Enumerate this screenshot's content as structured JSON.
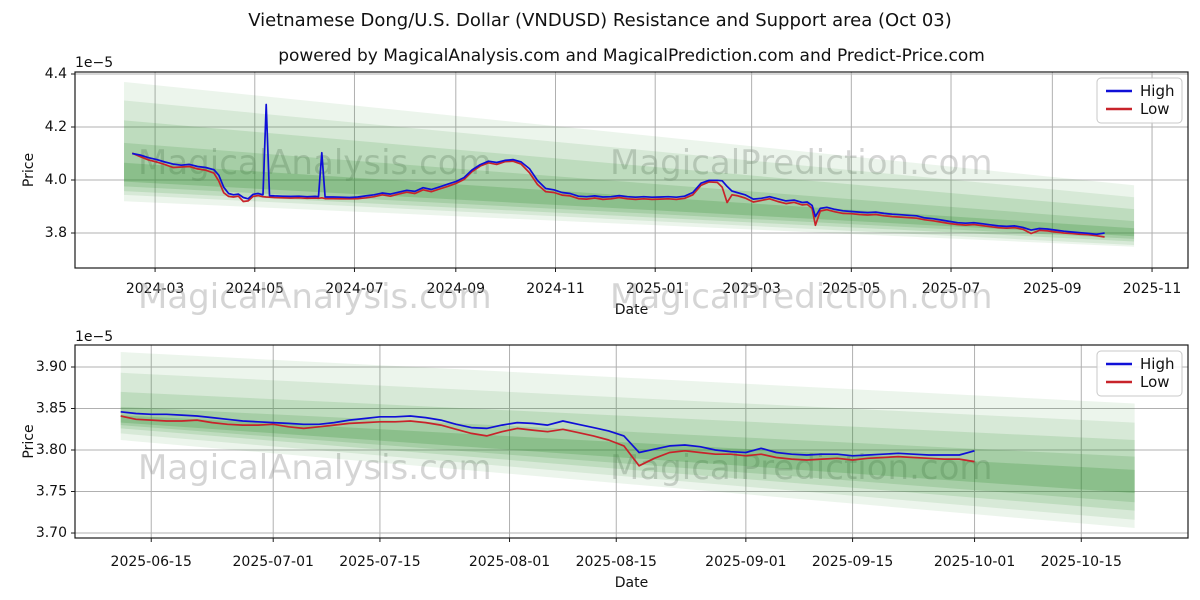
{
  "title": "Vietnamese Dong/U.S. Dollar (VNDUSD) Resistance and Support area (Oct 03)",
  "subtitle": "powered by MagicalAnalysis.com and MagicalPrediction.com and Predict-Price.com",
  "watermarks": {
    "left": "MagicalAnalysis.com",
    "right": "MagicalPrediction.com"
  },
  "legend": {
    "high_label": "High",
    "low_label": "Low"
  },
  "colors": {
    "high": "#0f0fd7",
    "low": "#c8232a",
    "band": "#2e8b2e",
    "grid": "#b0b0b0",
    "spine": "#1a1a1a",
    "watermark": "#9a9a9a",
    "text": "#111111"
  },
  "chart_data": [
    {
      "type": "line",
      "name": "long-range-chart",
      "xlabel": "Date",
      "ylabel": "Price",
      "offset_label": "1e−5",
      "x_epoch": "2024-01-12",
      "x_range": [
        0,
        681
      ],
      "ylim": [
        3.668,
        4.4075
      ],
      "grid": true,
      "legend_position": "upper right",
      "xticks": [
        [
          49,
          "2024-03"
        ],
        [
          110,
          "2024-05"
        ],
        [
          171,
          "2024-07"
        ],
        [
          233,
          "2024-09"
        ],
        [
          294,
          "2024-11"
        ],
        [
          355,
          "2025-01"
        ],
        [
          414,
          "2025-03"
        ],
        [
          475,
          "2025-05"
        ],
        [
          536,
          "2025-07"
        ],
        [
          598,
          "2025-09"
        ],
        [
          659,
          "2025-11"
        ]
      ],
      "yticks": [
        [
          4.4,
          "4.4"
        ],
        [
          4.2,
          "4.2"
        ],
        [
          4.0,
          "4.0"
        ],
        [
          3.8,
          "3.8"
        ]
      ],
      "series_names": [
        "High",
        "Low"
      ],
      "rows_format": [
        "t_days",
        "high_1e-5",
        "low_1e-5"
      ],
      "rows": [
        [
          35,
          4.1,
          4.101
        ],
        [
          40,
          4.094,
          4.088
        ],
        [
          45,
          4.084,
          4.076
        ],
        [
          50,
          4.077,
          4.068
        ],
        [
          55,
          4.068,
          4.058
        ],
        [
          60,
          4.06,
          4.047
        ],
        [
          65,
          4.056,
          4.049
        ],
        [
          70,
          4.059,
          4.051
        ],
        [
          75,
          4.051,
          4.042
        ],
        [
          80,
          4.047,
          4.037
        ],
        [
          85,
          4.039,
          4.026
        ],
        [
          88,
          4.018,
          3.996
        ],
        [
          91,
          3.973,
          3.952
        ],
        [
          94,
          3.949,
          3.938
        ],
        [
          97,
          3.944,
          3.936
        ],
        [
          100,
          3.947,
          3.939
        ],
        [
          103,
          3.934,
          3.919
        ],
        [
          106,
          3.929,
          3.921
        ],
        [
          109,
          3.946,
          3.938
        ],
        [
          112,
          3.949,
          3.941
        ],
        [
          115,
          3.944,
          3.937
        ],
        [
          117,
          4.285,
          3.936
        ],
        [
          119,
          3.941,
          3.935
        ],
        [
          122,
          3.94,
          3.934
        ],
        [
          127,
          3.939,
          3.933
        ],
        [
          132,
          3.938,
          3.932
        ],
        [
          137,
          3.939,
          3.933
        ],
        [
          142,
          3.937,
          3.931
        ],
        [
          147,
          3.938,
          3.932
        ],
        [
          149,
          3.937,
          3.931
        ],
        [
          151,
          4.103,
          3.933
        ],
        [
          153,
          3.936,
          3.93
        ],
        [
          158,
          3.936,
          3.93
        ],
        [
          163,
          3.935,
          3.929
        ],
        [
          168,
          3.934,
          3.929
        ],
        [
          173,
          3.936,
          3.93
        ],
        [
          178,
          3.94,
          3.933
        ],
        [
          183,
          3.944,
          3.937
        ],
        [
          188,
          3.951,
          3.944
        ],
        [
          193,
          3.947,
          3.939
        ],
        [
          198,
          3.954,
          3.947
        ],
        [
          203,
          3.961,
          3.954
        ],
        [
          208,
          3.957,
          3.949
        ],
        [
          213,
          3.971,
          3.963
        ],
        [
          218,
          3.964,
          3.956
        ],
        [
          223,
          3.974,
          3.966
        ],
        [
          228,
          3.984,
          3.976
        ],
        [
          233,
          3.994,
          3.987
        ],
        [
          238,
          4.009,
          4.002
        ],
        [
          243,
          4.038,
          4.032
        ],
        [
          248,
          4.058,
          4.053
        ],
        [
          253,
          4.071,
          4.065
        ],
        [
          258,
          4.066,
          4.059
        ],
        [
          263,
          4.074,
          4.069
        ],
        [
          268,
          4.077,
          4.071
        ],
        [
          273,
          4.068,
          4.06
        ],
        [
          278,
          4.043,
          4.028
        ],
        [
          283,
          3.998,
          3.983
        ],
        [
          288,
          3.968,
          3.956
        ],
        [
          293,
          3.963,
          3.953
        ],
        [
          298,
          3.953,
          3.943
        ],
        [
          303,
          3.949,
          3.94
        ],
        [
          308,
          3.939,
          3.93
        ],
        [
          313,
          3.937,
          3.928
        ],
        [
          318,
          3.94,
          3.932
        ],
        [
          323,
          3.936,
          3.927
        ],
        [
          328,
          3.937,
          3.929
        ],
        [
          333,
          3.941,
          3.934
        ],
        [
          338,
          3.937,
          3.929
        ],
        [
          343,
          3.935,
          3.927
        ],
        [
          348,
          3.937,
          3.929
        ],
        [
          353,
          3.935,
          3.927
        ],
        [
          358,
          3.936,
          3.928
        ],
        [
          363,
          3.937,
          3.929
        ],
        [
          368,
          3.935,
          3.927
        ],
        [
          373,
          3.939,
          3.931
        ],
        [
          378,
          3.953,
          3.944
        ],
        [
          383,
          3.988,
          3.98
        ],
        [
          388,
          3.999,
          3.993
        ],
        [
          393,
          3.999,
          3.991
        ],
        [
          396,
          3.997,
          3.973
        ],
        [
          399,
          3.976,
          3.915
        ],
        [
          402,
          3.958,
          3.944
        ],
        [
          405,
          3.953,
          3.941
        ],
        [
          410,
          3.944,
          3.932
        ],
        [
          415,
          3.928,
          3.917
        ],
        [
          420,
          3.931,
          3.923
        ],
        [
          425,
          3.937,
          3.929
        ],
        [
          430,
          3.929,
          3.919
        ],
        [
          435,
          3.921,
          3.911
        ],
        [
          440,
          3.924,
          3.916
        ],
        [
          445,
          3.915,
          3.906
        ],
        [
          448,
          3.917,
          3.908
        ],
        [
          451,
          3.904,
          3.893
        ],
        [
          453,
          3.862,
          3.829
        ],
        [
          456,
          3.893,
          3.883
        ],
        [
          460,
          3.897,
          3.888
        ],
        [
          465,
          3.889,
          3.88
        ],
        [
          470,
          3.884,
          3.874
        ],
        [
          475,
          3.881,
          3.873
        ],
        [
          480,
          3.879,
          3.87
        ],
        [
          485,
          3.877,
          3.868
        ],
        [
          490,
          3.879,
          3.87
        ],
        [
          495,
          3.874,
          3.865
        ],
        [
          500,
          3.871,
          3.862
        ],
        [
          505,
          3.869,
          3.86
        ],
        [
          510,
          3.867,
          3.858
        ],
        [
          515,
          3.865,
          3.856
        ],
        [
          520,
          3.857,
          3.85
        ],
        [
          525,
          3.854,
          3.846
        ],
        [
          530,
          3.849,
          3.841
        ],
        [
          535,
          3.844,
          3.836
        ],
        [
          540,
          3.839,
          3.832
        ],
        [
          545,
          3.837,
          3.83
        ],
        [
          550,
          3.839,
          3.832
        ],
        [
          555,
          3.835,
          3.828
        ],
        [
          560,
          3.831,
          3.824
        ],
        [
          565,
          3.827,
          3.82
        ],
        [
          570,
          3.825,
          3.818
        ],
        [
          575,
          3.827,
          3.82
        ],
        [
          580,
          3.821,
          3.814
        ],
        [
          585,
          3.811,
          3.798
        ],
        [
          590,
          3.817,
          3.81
        ],
        [
          595,
          3.815,
          3.808
        ],
        [
          600,
          3.811,
          3.804
        ],
        [
          605,
          3.807,
          3.8
        ],
        [
          610,
          3.804,
          3.798
        ],
        [
          615,
          3.801,
          3.795
        ],
        [
          620,
          3.799,
          3.794
        ],
        [
          625,
          3.795,
          3.79
        ],
        [
          630,
          3.8,
          3.785
        ]
      ],
      "bands_format": [
        "t0",
        "top0",
        "bot0",
        "t1",
        "top1",
        "bot1",
        "alpha"
      ],
      "bands": [
        [
          30,
          4.37,
          3.92,
          648,
          3.98,
          3.748,
          0.09
        ],
        [
          30,
          4.3,
          3.944,
          648,
          3.935,
          3.755,
          0.11
        ],
        [
          30,
          4.225,
          3.958,
          648,
          3.89,
          3.768,
          0.14
        ],
        [
          30,
          4.14,
          3.976,
          648,
          3.845,
          3.778,
          0.17
        ],
        [
          30,
          4.065,
          3.994,
          648,
          3.818,
          3.788,
          0.22
        ]
      ]
    },
    {
      "type": "line",
      "name": "recent-range-chart",
      "xlabel": "Date",
      "ylabel": "Price",
      "offset_label": "1e−5",
      "x_epoch": "2025-06-05",
      "x_range": [
        0,
        146
      ],
      "ylim": [
        3.694,
        3.9265
      ],
      "grid": true,
      "legend_position": "upper right",
      "xticks": [
        [
          10,
          "2025-06-15"
        ],
        [
          26,
          "2025-07-01"
        ],
        [
          40,
          "2025-07-15"
        ],
        [
          57,
          "2025-08-01"
        ],
        [
          71,
          "2025-08-15"
        ],
        [
          88,
          "2025-09-01"
        ],
        [
          102,
          "2025-09-15"
        ],
        [
          118,
          "2025-10-01"
        ],
        [
          132,
          "2025-10-15"
        ]
      ],
      "yticks": [
        [
          3.9,
          "3.90"
        ],
        [
          3.85,
          "3.85"
        ],
        [
          3.8,
          "3.80"
        ],
        [
          3.75,
          "3.75"
        ],
        [
          3.7,
          "3.70"
        ]
      ],
      "series_names": [
        "High",
        "Low"
      ],
      "rows_format": [
        "t_days",
        "high_1e-5",
        "low_1e-5"
      ],
      "rows": [
        [
          6,
          3.846,
          3.841
        ],
        [
          8,
          3.844,
          3.837
        ],
        [
          10,
          3.843,
          3.836
        ],
        [
          12,
          3.843,
          3.835
        ],
        [
          14,
          3.842,
          3.835
        ],
        [
          16,
          3.841,
          3.836
        ],
        [
          18,
          3.839,
          3.833
        ],
        [
          20,
          3.837,
          3.831
        ],
        [
          22,
          3.835,
          3.83
        ],
        [
          24,
          3.834,
          3.83
        ],
        [
          26,
          3.833,
          3.831
        ],
        [
          28,
          3.832,
          3.828
        ],
        [
          30,
          3.831,
          3.826
        ],
        [
          32,
          3.831,
          3.828
        ],
        [
          34,
          3.833,
          3.83
        ],
        [
          36,
          3.836,
          3.832
        ],
        [
          38,
          3.838,
          3.833
        ],
        [
          40,
          3.84,
          3.834
        ],
        [
          42,
          3.84,
          3.834
        ],
        [
          44,
          3.841,
          3.835
        ],
        [
          46,
          3.839,
          3.833
        ],
        [
          48,
          3.836,
          3.83
        ],
        [
          50,
          3.831,
          3.825
        ],
        [
          52,
          3.827,
          3.82
        ],
        [
          54,
          3.826,
          3.817
        ],
        [
          56,
          3.83,
          3.822
        ],
        [
          58,
          3.833,
          3.826
        ],
        [
          60,
          3.832,
          3.824
        ],
        [
          62,
          3.83,
          3.822
        ],
        [
          64,
          3.835,
          3.825
        ],
        [
          66,
          3.831,
          3.821
        ],
        [
          68,
          3.827,
          3.817
        ],
        [
          70,
          3.823,
          3.812
        ],
        [
          72,
          3.817,
          3.805
        ],
        [
          74,
          3.797,
          3.781
        ],
        [
          76,
          3.801,
          3.79
        ],
        [
          78,
          3.805,
          3.797
        ],
        [
          80,
          3.806,
          3.799
        ],
        [
          82,
          3.804,
          3.797
        ],
        [
          84,
          3.8,
          3.795
        ],
        [
          86,
          3.798,
          3.795
        ],
        [
          88,
          3.797,
          3.793
        ],
        [
          90,
          3.802,
          3.795
        ],
        [
          92,
          3.797,
          3.791
        ],
        [
          94,
          3.795,
          3.789
        ],
        [
          96,
          3.794,
          3.788
        ],
        [
          98,
          3.795,
          3.789
        ],
        [
          100,
          3.795,
          3.79
        ],
        [
          102,
          3.793,
          3.788
        ],
        [
          104,
          3.794,
          3.79
        ],
        [
          106,
          3.795,
          3.791
        ],
        [
          108,
          3.796,
          3.792
        ],
        [
          110,
          3.795,
          3.791
        ],
        [
          112,
          3.794,
          3.79
        ],
        [
          114,
          3.794,
          3.789
        ],
        [
          116,
          3.794,
          3.789
        ],
        [
          118,
          3.799,
          3.786
        ]
      ],
      "bands_format": [
        "t0",
        "top0",
        "bot0",
        "t1",
        "top1",
        "bot1",
        "alpha"
      ],
      "bands": [
        [
          6,
          3.918,
          3.812,
          139,
          3.856,
          3.706,
          0.09
        ],
        [
          6,
          3.893,
          3.82,
          139,
          3.833,
          3.716,
          0.11
        ],
        [
          6,
          3.87,
          3.826,
          139,
          3.812,
          3.727,
          0.14
        ],
        [
          6,
          3.852,
          3.83,
          139,
          3.792,
          3.737,
          0.17
        ],
        [
          6,
          3.842,
          3.833,
          139,
          3.776,
          3.748,
          0.22
        ]
      ]
    }
  ]
}
